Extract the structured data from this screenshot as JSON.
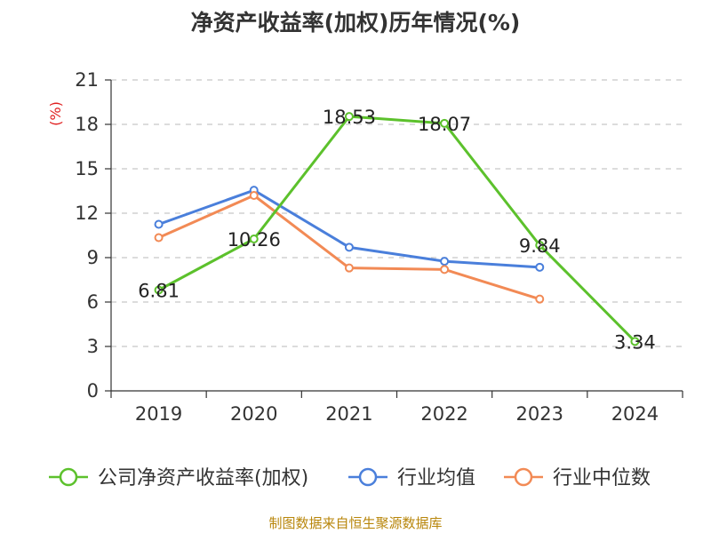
{
  "chart_data": {
    "type": "line",
    "title": "净资产收益率(加权)历年情况(%)",
    "ylabel": "(%)",
    "categories": [
      "2019",
      "2020",
      "2021",
      "2022",
      "2023",
      "2024"
    ],
    "ylim": [
      0,
      21
    ],
    "yticks": [
      0,
      3,
      6,
      9,
      12,
      15,
      18,
      21
    ],
    "grid": "dashed horizontal",
    "legend_position": "bottom",
    "series": [
      {
        "name": "公司净资产收益率(加权)",
        "color": "#5cc12c",
        "values": [
          6.81,
          10.26,
          18.53,
          18.07,
          9.84,
          3.34
        ],
        "data_labels": [
          "6.81",
          "10.26",
          "18.53",
          "18.07",
          "9.84",
          "3.34"
        ]
      },
      {
        "name": "行业均值",
        "color": "#4a7fdb",
        "values": [
          11.25,
          13.55,
          9.7,
          8.75,
          8.35,
          null
        ]
      },
      {
        "name": "行业中位数",
        "color": "#f28a55",
        "values": [
          10.35,
          13.2,
          8.3,
          8.2,
          6.2,
          null
        ]
      }
    ]
  },
  "source": "制图数据来自恒生聚源数据库"
}
